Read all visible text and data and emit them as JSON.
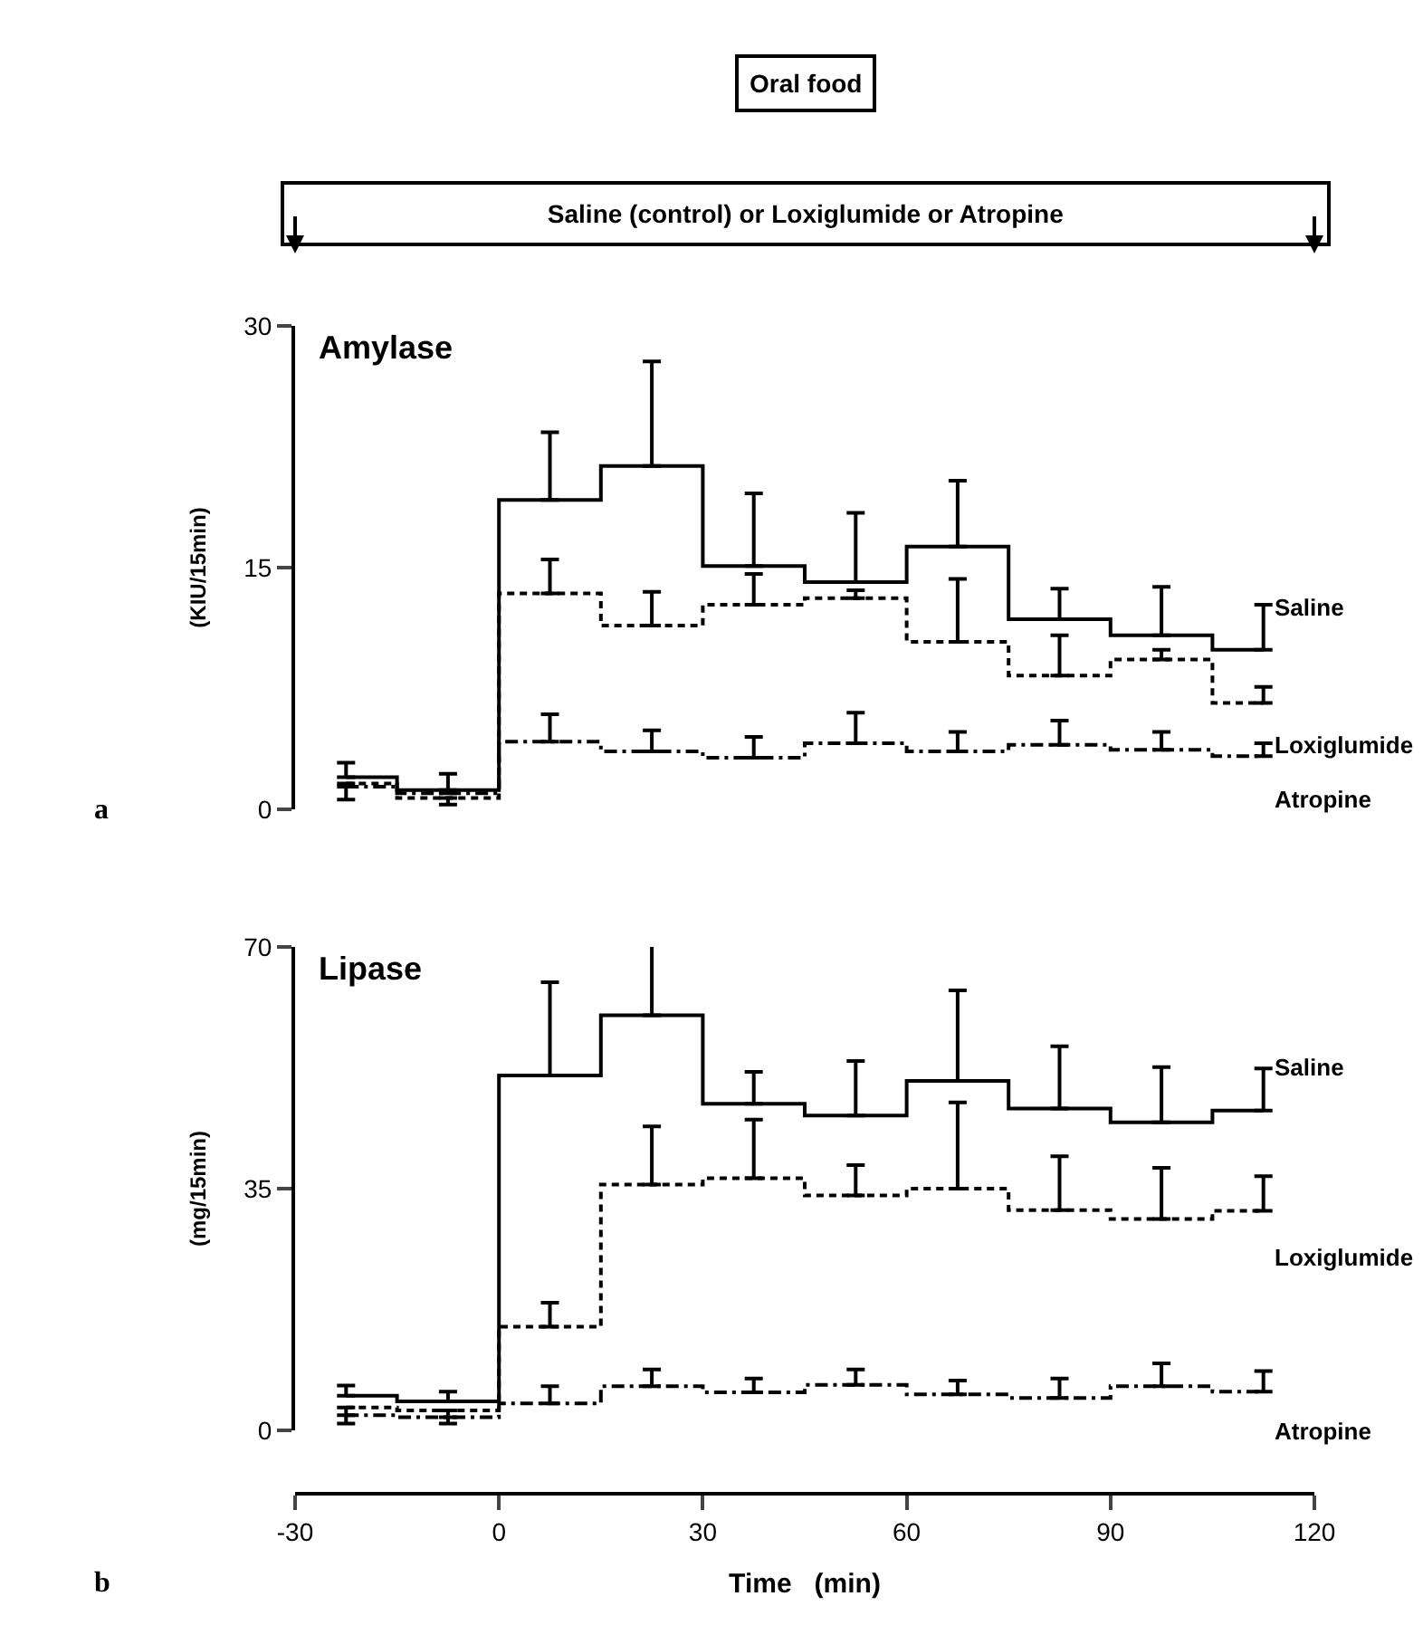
{
  "chart_data": [
    {
      "type": "step",
      "title": "Amylase",
      "ylabel": "(KIU/15min)",
      "x": [
        -22.5,
        -7.5,
        7.5,
        22.5,
        37.5,
        52.5,
        67.5,
        82.5,
        97.5,
        112.5
      ],
      "xlim": [
        -30,
        120
      ],
      "ylim": [
        0,
        30
      ],
      "yticks": [
        0,
        15,
        30
      ],
      "tick_labels": "y",
      "annotations": [
        "Oral food",
        "Saline (control) or Loxiglumide or Atropine",
        "a"
      ],
      "series": [
        {
          "name": "Saline",
          "color": "#000000",
          "line_style": "solid",
          "values": [
            2.0,
            1.2,
            19.2,
            21.3,
            15.1,
            14.1,
            16.3,
            11.8,
            10.8,
            9.9
          ],
          "errors": [
            [
              2.0,
              2.9
            ],
            [
              1.2,
              2.2
            ],
            [
              19.2,
              23.4
            ],
            [
              21.3,
              27.8
            ],
            [
              15.1,
              19.6
            ],
            [
              14.1,
              18.4
            ],
            [
              16.3,
              20.4
            ],
            [
              11.8,
              13.7
            ],
            [
              10.8,
              13.8
            ],
            [
              9.9,
              12.7
            ]
          ]
        },
        {
          "name": "Loxiglumide",
          "color": "#000000",
          "line_style": "dashed",
          "values": [
            1.6,
            0.7,
            13.4,
            11.4,
            12.7,
            13.1,
            10.4,
            8.3,
            9.3,
            6.6
          ],
          "errors": [
            [
              0.6,
              1.6
            ],
            [
              0.3,
              0.7
            ],
            [
              13.4,
              15.5
            ],
            [
              11.4,
              13.5
            ],
            [
              12.7,
              14.6
            ],
            [
              13.1,
              13.6
            ],
            [
              10.4,
              14.3
            ],
            [
              8.3,
              10.8
            ],
            [
              9.3,
              9.9
            ],
            [
              6.6,
              7.6
            ]
          ]
        },
        {
          "name": "Atropine",
          "color": "#000000",
          "line_style": "dashdot",
          "values": [
            1.4,
            1.0,
            4.2,
            3.6,
            3.2,
            4.1,
            3.6,
            4.0,
            3.7,
            3.3
          ],
          "errors": [
            null,
            null,
            [
              4.2,
              5.9
            ],
            [
              3.6,
              4.9
            ],
            [
              3.2,
              4.5
            ],
            [
              4.1,
              6.0
            ],
            [
              3.6,
              4.8
            ],
            [
              4.0,
              5.5
            ],
            [
              3.7,
              4.8
            ],
            [
              3.3,
              4.1
            ]
          ]
        }
      ]
    },
    {
      "type": "step",
      "title": "Lipase",
      "ylabel": "(mg/15min)",
      "xlabel": "Time   (min)",
      "x": [
        -22.5,
        -7.5,
        7.5,
        22.5,
        37.5,
        52.5,
        67.5,
        82.5,
        97.5,
        112.5
      ],
      "xlim": [
        -30,
        120
      ],
      "xticks": [
        -30,
        0,
        30,
        60,
        90,
        120
      ],
      "ylim": [
        0,
        70
      ],
      "yticks": [
        0,
        35,
        70
      ],
      "annotations": [
        "b"
      ],
      "series": [
        {
          "name": "Saline",
          "color": "#000000",
          "line_style": "solid",
          "values": [
            5.0,
            4.2,
            51.4,
            60.1,
            47.3,
            45.6,
            50.6,
            46.6,
            44.6,
            46.3
          ],
          "errors": [
            [
              5.0,
              6.5
            ],
            [
              4.2,
              5.6
            ],
            [
              51.4,
              64.9
            ],
            [
              60.1,
              70.3
            ],
            [
              47.3,
              51.9
            ],
            [
              45.6,
              53.5
            ],
            [
              50.6,
              63.7
            ],
            [
              46.6,
              55.6
            ],
            [
              44.6,
              52.6
            ],
            [
              46.3,
              52.4
            ]
          ]
        },
        {
          "name": "Loxiglumide",
          "color": "#000000",
          "line_style": "dashed",
          "values": [
            3.3,
            2.9,
            15.0,
            35.6,
            36.5,
            34.0,
            35.0,
            31.9,
            30.6,
            31.8
          ],
          "errors": [
            [
              1.0,
              3.3
            ],
            [
              1.0,
              2.9
            ],
            [
              15.0,
              18.5
            ],
            [
              35.6,
              44.0
            ],
            [
              36.5,
              45.0
            ],
            [
              34.0,
              38.4
            ],
            [
              35.0,
              47.5
            ],
            [
              31.9,
              39.7
            ],
            [
              30.6,
              38.0
            ],
            [
              31.8,
              36.8
            ]
          ]
        },
        {
          "name": "Atropine",
          "color": "#000000",
          "line_style": "dashdot",
          "values": [
            2.2,
            1.9,
            3.9,
            6.4,
            5.5,
            6.6,
            5.2,
            4.7,
            6.4,
            5.6
          ],
          "errors": [
            null,
            null,
            [
              3.9,
              6.4
            ],
            [
              6.4,
              8.8
            ],
            [
              5.5,
              7.5
            ],
            [
              6.6,
              8.8
            ],
            [
              5.2,
              7.2
            ],
            [
              4.7,
              7.5
            ],
            [
              6.4,
              9.7
            ],
            [
              5.6,
              8.6
            ]
          ]
        }
      ]
    }
  ]
}
